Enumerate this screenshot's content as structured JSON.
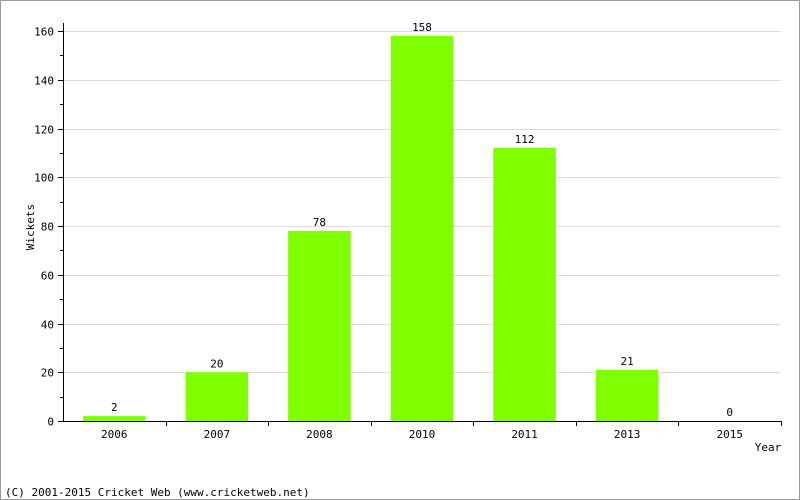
{
  "chart_data": {
    "type": "bar",
    "categories": [
      "2006",
      "2007",
      "2008",
      "2010",
      "2011",
      "2013",
      "2015"
    ],
    "values": [
      2,
      20,
      78,
      158,
      112,
      21,
      0
    ],
    "xlabel": "Year",
    "ylabel": "Wickets",
    "ylim": [
      0,
      160
    ],
    "yticks": [
      0,
      20,
      40,
      60,
      80,
      100,
      120,
      140,
      160
    ],
    "grid": true,
    "bar_color": "#80ff00",
    "data_labels": true
  },
  "footer": {
    "copyright": "(C) 2001-2015 Cricket Web (www.cricketweb.net)"
  }
}
